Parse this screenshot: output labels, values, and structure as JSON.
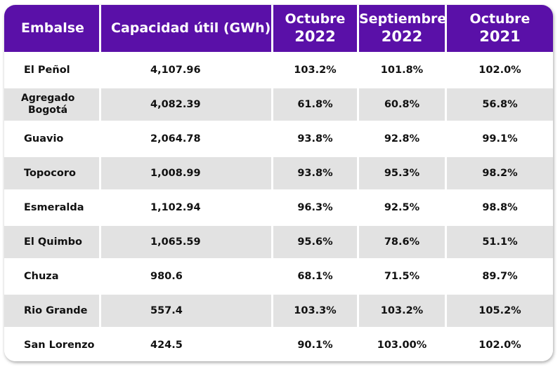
{
  "table": {
    "headers": {
      "embalse": "Embalse",
      "capacidad": "Capacidad útil (GWh)",
      "oct2022_month": "Octubre",
      "oct2022_year": "2022",
      "sep2022_month": "Septiembre",
      "sep2022_year": "2022",
      "oct2021_month": "Octubre",
      "oct2021_year": "2021"
    },
    "rows": [
      {
        "name": "El Peñol",
        "capacity": "4,107.96",
        "oct2022": "103.2%",
        "sep2022": "101.8%",
        "oct2021": "102.0%"
      },
      {
        "name": "Agregado Bogotá",
        "name_l1": "Agregado",
        "name_l2": "Bogotá",
        "capacity": "4,082.39",
        "oct2022": "61.8%",
        "sep2022": "60.8%",
        "oct2021": "56.8%"
      },
      {
        "name": "Guavio",
        "capacity": "2,064.78",
        "oct2022": "93.8%",
        "sep2022": "92.8%",
        "oct2021": "99.1%"
      },
      {
        "name": "Topocoro",
        "capacity": "1,008.99",
        "oct2022": "93.8%",
        "sep2022": "95.3%",
        "oct2021": "98.2%"
      },
      {
        "name": "Esmeralda",
        "capacity": "1,102.94",
        "oct2022": "96.3%",
        "sep2022": "92.5%",
        "oct2021": "98.8%"
      },
      {
        "name": "El Quimbo",
        "capacity": "1,065.59",
        "oct2022": "95.6%",
        "sep2022": "78.6%",
        "oct2021": "51.1%"
      },
      {
        "name": "Chuza",
        "capacity": "980.6",
        "oct2022": "68.1%",
        "sep2022": "71.5%",
        "oct2021": "89.7%"
      },
      {
        "name": "Rio Grande",
        "capacity": "557.4",
        "oct2022": "103.3%",
        "sep2022": "103.2%",
        "oct2021": "105.2%"
      },
      {
        "name": "San Lorenzo",
        "capacity": "424.5",
        "oct2022": "90.1%",
        "sep2022": "103.00%",
        "oct2021": "102.0%"
      }
    ]
  },
  "colors": {
    "header_bg": "#5a10a8",
    "header_text": "#ffffff",
    "row_alt_bg": "#e2e2e2"
  }
}
